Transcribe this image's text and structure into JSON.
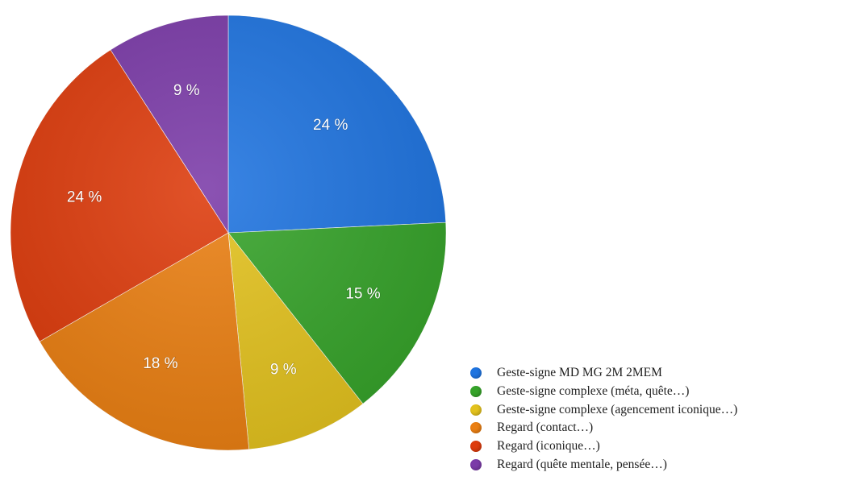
{
  "chart_data": {
    "type": "pie",
    "title": "",
    "legend_position": "bottom-right",
    "slices": [
      {
        "label": "Geste-signe MD MG 2M 2MEM",
        "value": 24,
        "value_label": "24 %",
        "color": "#1f74e0"
      },
      {
        "label": "Geste-signe complexe (méta, quête…)",
        "value": 15,
        "value_label": "15 %",
        "color": "#36a32a"
      },
      {
        "label": "Geste-signe complexe (agencement iconique…)",
        "value": 9,
        "value_label": "9 %",
        "color": "#e3c21e"
      },
      {
        "label": "Regard (contact…)",
        "value": 18,
        "value_label": "18 %",
        "color": "#ea7f12"
      },
      {
        "label": "Regard (iconique…)",
        "value": 24,
        "value_label": "24 %",
        "color": "#dd3b0c"
      },
      {
        "label": "Regard (quête mentale, pensée…)",
        "value": 9,
        "value_label": "9 %",
        "color": "#7b3ba8"
      }
    ]
  }
}
